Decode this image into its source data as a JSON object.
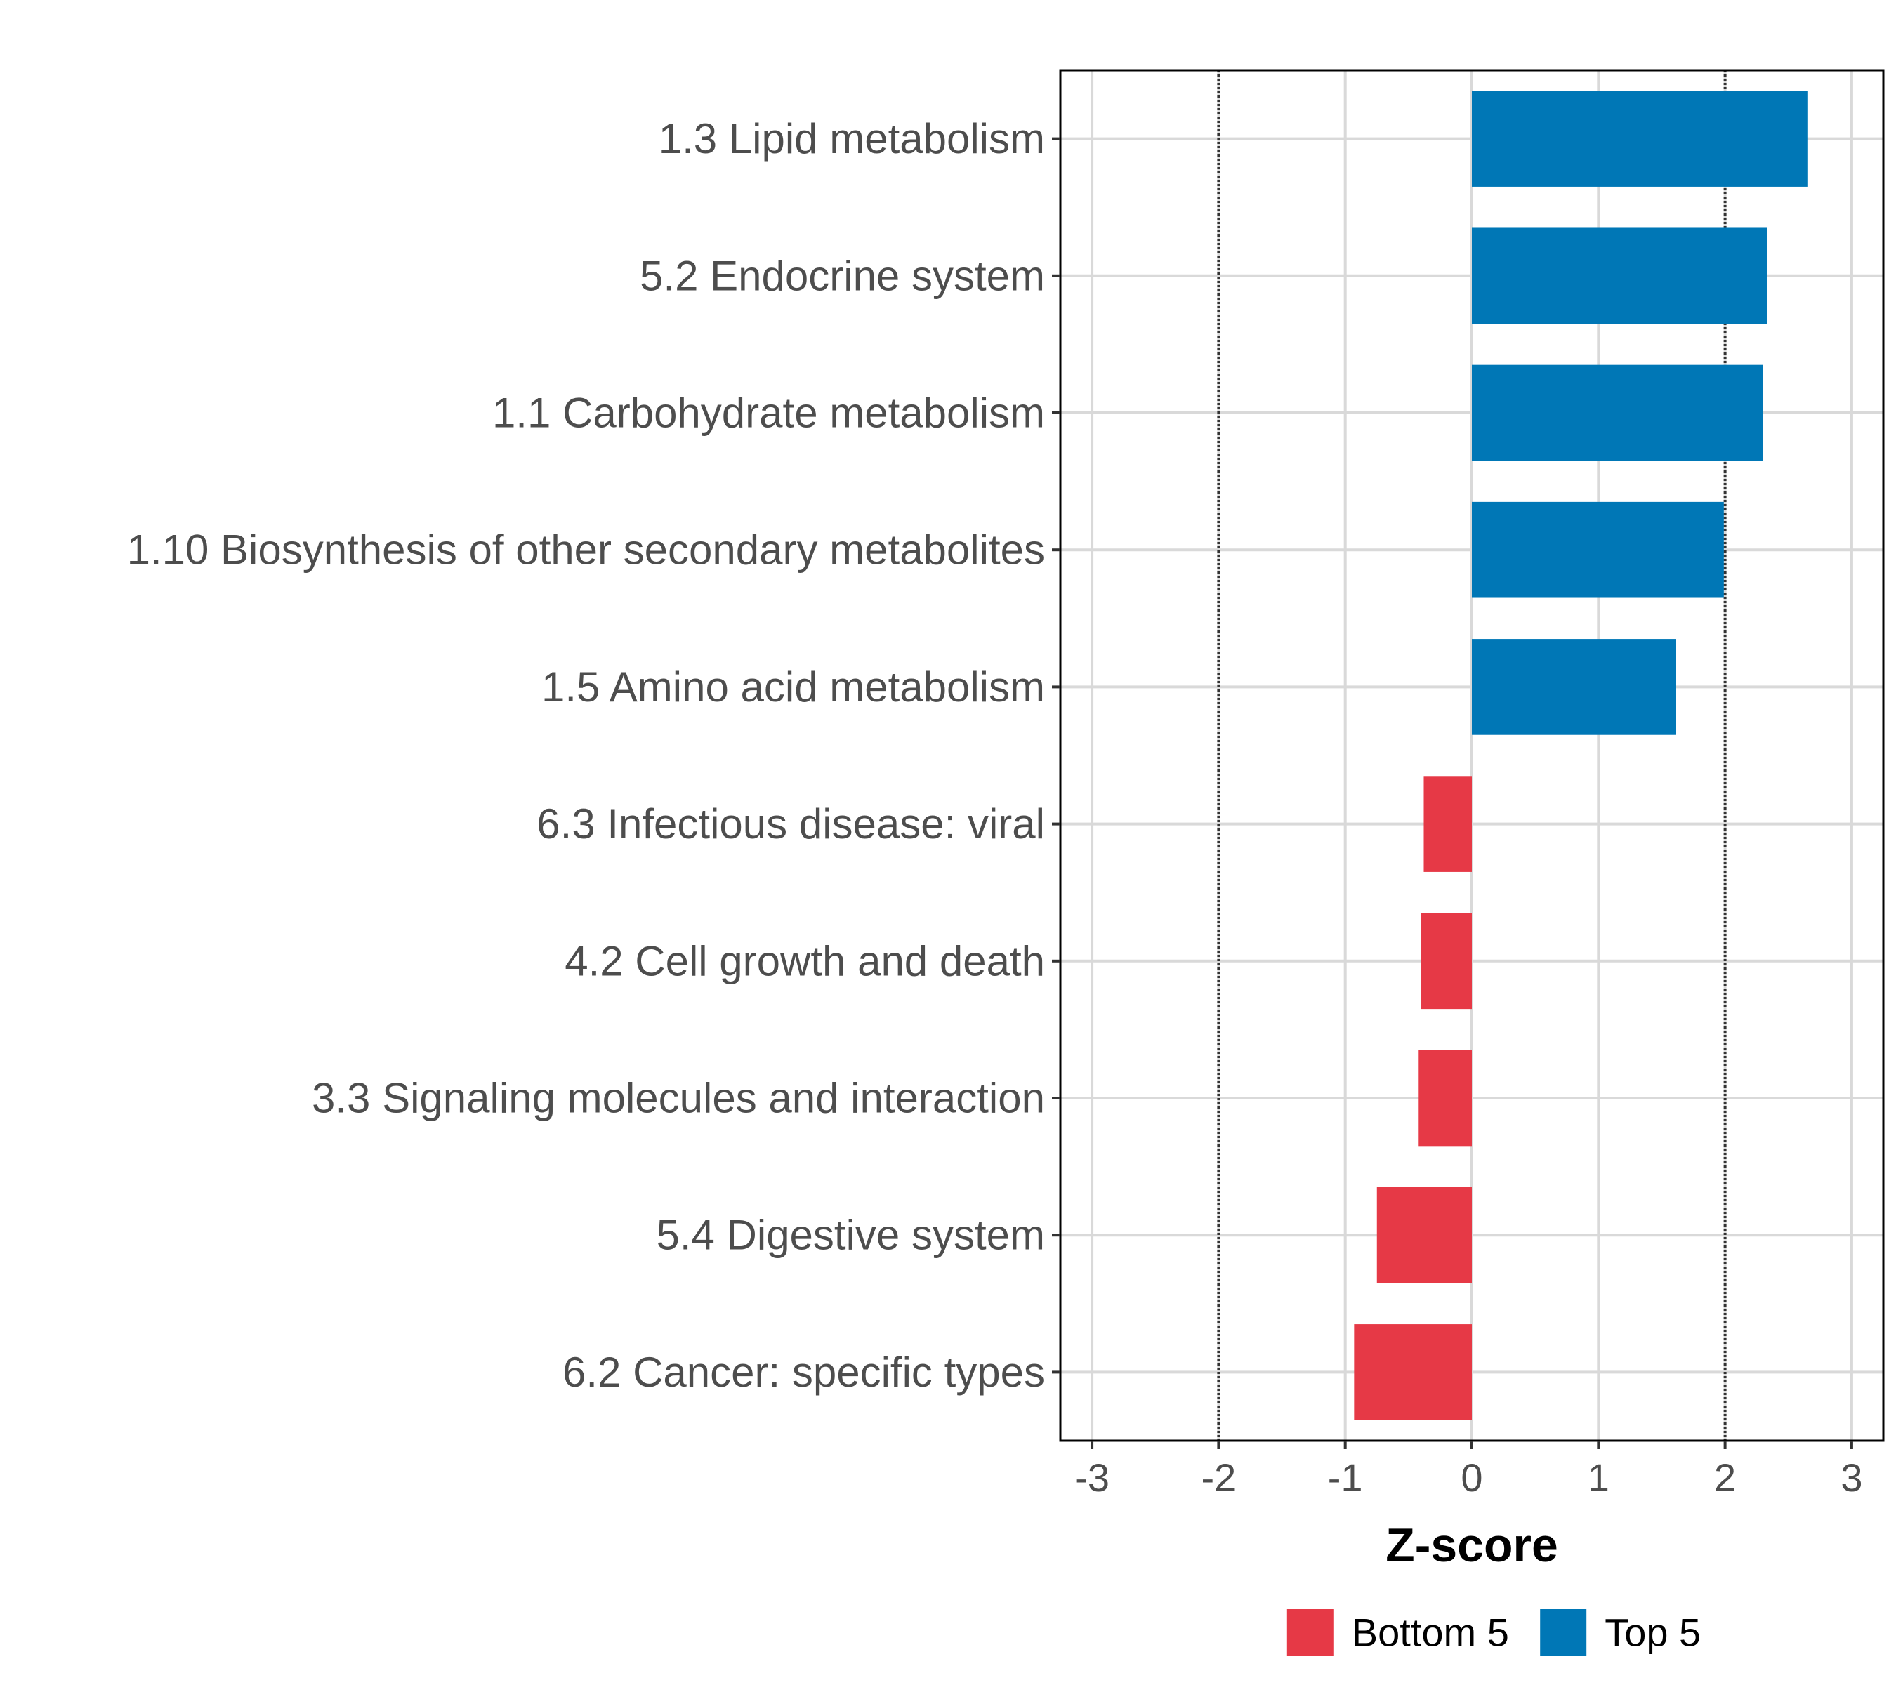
{
  "chart_data": {
    "type": "bar",
    "orientation": "horizontal",
    "categories": [
      "1.3 Lipid metabolism",
      "5.2 Endocrine system",
      "1.1 Carbohydrate metabolism",
      "1.10 Biosynthesis of other secondary metabolites",
      "1.5 Amino acid metabolism",
      "6.3 Infectious disease: viral",
      "4.2 Cell growth and death",
      "3.3 Signaling molecules and interaction",
      "5.4 Digestive system",
      "6.2 Cancer: specific types"
    ],
    "values": [
      2.65,
      2.33,
      2.3,
      1.99,
      1.61,
      -0.38,
      -0.4,
      -0.42,
      -0.75,
      -0.93
    ],
    "groups": [
      "Top 5",
      "Top 5",
      "Top 5",
      "Top 5",
      "Top 5",
      "Bottom 5",
      "Bottom 5",
      "Bottom 5",
      "Bottom 5",
      "Bottom 5"
    ],
    "xlabel": "Z-score",
    "ylabel": "",
    "xlim": [
      -3.25,
      3.25
    ],
    "xticks": [
      -3,
      -2,
      -1,
      0,
      1,
      2,
      3
    ],
    "xtick_labels": [
      "-3",
      "-2",
      "-1",
      "0",
      "1",
      "2",
      "3"
    ],
    "reference_lines": [
      -2,
      2
    ],
    "grid": true,
    "legend": {
      "position": "bottom",
      "entries": [
        {
          "label": "Bottom 5",
          "color": "#e63946"
        },
        {
          "label": "Top 5",
          "color": "#0077b6"
        }
      ]
    },
    "colors": {
      "Top 5": "#0077b6",
      "Bottom 5": "#e63946"
    }
  }
}
